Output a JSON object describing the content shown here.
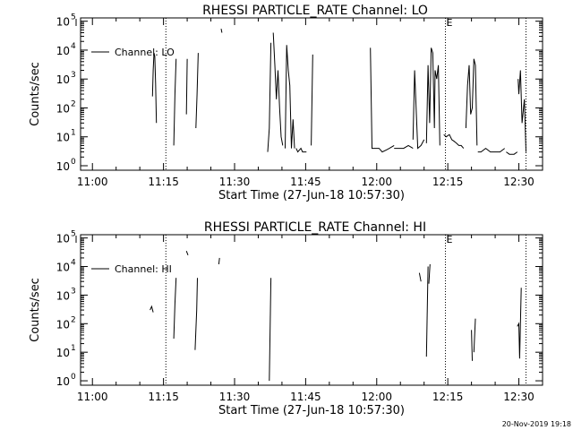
{
  "chart_data": [
    {
      "type": "line",
      "title": "RHESSI PARTICLE_RATE Channel: LO",
      "xlabel": "Start Time (27-Jun-18 10:57:30)",
      "ylabel": "Counts/sec",
      "log_y": true,
      "xlim": [
        "10:57:30",
        "12:35:00"
      ],
      "ylim": [
        0.7,
        130000
      ],
      "x_ticks": [
        "11:00",
        "11:15",
        "11:30",
        "11:45",
        "12:00",
        "12:15",
        "12:30"
      ],
      "y_ticks": [
        {
          "base": "10",
          "exp": "0"
        },
        {
          "base": "10",
          "exp": "1"
        },
        {
          "base": "10",
          "exp": "2"
        },
        {
          "base": "10",
          "exp": "3"
        },
        {
          "base": "10",
          "exp": "4"
        },
        {
          "base": "10",
          "exp": "5"
        }
      ],
      "markers": [
        {
          "time": "11:15:30",
          "label": ""
        },
        {
          "time": "12:14:30",
          "label": "E"
        },
        {
          "time": "12:31:30",
          "label": ""
        }
      ],
      "legend": {
        "position": "top-left",
        "entries": [
          "Channel: LO"
        ]
      },
      "series": [
        {
          "name": "Channel: LO",
          "segments": [
            [
              [
                "11:12:40",
                250
              ],
              [
                "11:12:50",
                2000
              ],
              [
                "11:13:00",
                8000
              ],
              [
                "11:13:10",
                6000
              ],
              [
                "11:13:20",
                700
              ],
              [
                "11:13:30",
                30
              ]
            ],
            [
              [
                "11:17:10",
                5
              ],
              [
                "11:17:25",
                300
              ],
              [
                "11:17:40",
                5000
              ]
            ],
            [
              [
                "11:19:50",
                60
              ],
              [
                "11:20:00",
                5000
              ]
            ],
            [
              [
                "11:21:50",
                20
              ],
              [
                "11:22:05",
                300
              ],
              [
                "11:22:20",
                8000
              ]
            ],
            [
              [
                "11:27:10",
                55000
              ],
              [
                "11:27:20",
                40000
              ]
            ],
            [
              [
                "11:37:00",
                3
              ],
              [
                "11:37:20",
                20
              ],
              [
                "11:37:40",
                18000
              ]
            ],
            [
              [
                "11:38:10",
                40000
              ],
              [
                "11:38:30",
                3000
              ],
              [
                "11:38:50",
                200
              ],
              [
                "11:39:10",
                2000
              ],
              [
                "11:39:30",
                100
              ],
              [
                "11:39:50",
                10
              ],
              [
                "11:40:10",
                5
              ]
            ],
            [
              [
                "11:40:40",
                4
              ],
              [
                "11:41:00",
                15000
              ],
              [
                "11:41:20",
                2000
              ],
              [
                "11:41:40",
                600
              ],
              [
                "11:42:00",
                4
              ],
              [
                "11:42:20",
                40
              ],
              [
                "11:42:40",
                4
              ]
            ],
            [
              [
                "11:43:00",
                4
              ],
              [
                "11:43:20",
                3
              ],
              [
                "11:44:00",
                4
              ],
              [
                "11:44:20",
                3
              ],
              [
                "11:44:50",
                3
              ],
              [
                "11:45:10",
                3
              ]
            ],
            [
              [
                "11:46:10",
                5
              ],
              [
                "11:46:30",
                7000
              ]
            ],
            [
              [
                "11:58:40",
                12000
              ],
              [
                "11:59:00",
                4
              ],
              [
                "11:59:40",
                4
              ],
              [
                "12:00:30",
                4
              ],
              [
                "12:01:10",
                3
              ],
              [
                "12:02:00",
                3.5
              ],
              [
                "12:02:40",
                4
              ],
              [
                "12:03:40",
                5
              ]
            ],
            [
              [
                "12:03:40",
                4
              ],
              [
                "12:04:40",
                4
              ],
              [
                "12:05:40",
                4
              ],
              [
                "12:06:40",
                5
              ],
              [
                "12:07:40",
                4
              ]
            ],
            [
              [
                "12:07:40",
                8
              ],
              [
                "12:08:00",
                2000
              ],
              [
                "12:08:40",
                4
              ],
              [
                "12:09:20",
                5
              ],
              [
                "12:10:00",
                8
              ]
            ],
            [
              [
                "12:10:30",
                6
              ],
              [
                "12:10:50",
                3000
              ],
              [
                "12:11:10",
                30
              ],
              [
                "12:11:30",
                12000
              ],
              [
                "12:11:50",
                8000
              ],
              [
                "12:12:10",
                20
              ],
              [
                "12:12:20",
                2000
              ],
              [
                "12:12:40",
                1000
              ],
              [
                "12:13:00",
                3000
              ],
              [
                "12:13:20",
                5
              ]
            ],
            [
              [
                "12:14:10",
                12
              ],
              [
                "12:14:40",
                10
              ],
              [
                "12:15:20",
                12
              ],
              [
                "12:15:50",
                8
              ],
              [
                "12:16:20",
                7
              ],
              [
                "12:16:50",
                6
              ],
              [
                "12:17:20",
                5
              ],
              [
                "12:17:50",
                5
              ],
              [
                "12:18:20",
                4
              ]
            ],
            [
              [
                "12:18:50",
                20
              ],
              [
                "12:19:10",
                600
              ],
              [
                "12:19:30",
                3000
              ],
              [
                "12:19:50",
                60
              ],
              [
                "12:20:10",
                100
              ],
              [
                "12:20:30",
                5000
              ],
              [
                "12:20:50",
                3000
              ],
              [
                "12:21:10",
                5
              ]
            ],
            [
              [
                "12:21:20",
                3
              ],
              [
                "12:22:00",
                3
              ],
              [
                "12:23:00",
                4
              ],
              [
                "12:24:00",
                3
              ],
              [
                "12:25:00",
                3
              ],
              [
                "12:26:00",
                3
              ],
              [
                "12:27:00",
                4
              ]
            ],
            [
              [
                "12:27:20",
                3
              ],
              [
                "12:28:00",
                2.5
              ],
              [
                "12:29:00",
                2.5
              ],
              [
                "12:29:40",
                3
              ]
            ],
            [
              [
                "12:29:50",
                1000
              ],
              [
                "12:30:00",
                300
              ],
              [
                "12:30:20",
                2000
              ],
              [
                "12:30:40",
                30
              ],
              [
                "12:31:10",
                200
              ],
              [
                "12:31:30",
                3
              ]
            ]
          ]
        }
      ]
    },
    {
      "type": "line",
      "title": "RHESSI PARTICLE_RATE Channel: HI",
      "xlabel": "Start Time (27-Jun-18 10:57:30)",
      "ylabel": "Counts/sec",
      "log_y": true,
      "xlim": [
        "10:57:30",
        "12:35:00"
      ],
      "ylim": [
        0.7,
        130000
      ],
      "x_ticks": [
        "11:00",
        "11:15",
        "11:30",
        "11:45",
        "12:00",
        "12:15",
        "12:30"
      ],
      "y_ticks": [
        {
          "base": "10",
          "exp": "0"
        },
        {
          "base": "10",
          "exp": "1"
        },
        {
          "base": "10",
          "exp": "2"
        },
        {
          "base": "10",
          "exp": "3"
        },
        {
          "base": "10",
          "exp": "4"
        },
        {
          "base": "10",
          "exp": "5"
        }
      ],
      "markers": [
        {
          "time": "11:15:30",
          "label": ""
        },
        {
          "time": "12:14:30",
          "label": "E"
        },
        {
          "time": "12:31:30",
          "label": ""
        }
      ],
      "legend": {
        "position": "top-left",
        "entries": [
          "Channel: HI"
        ]
      },
      "series": [
        {
          "name": "Channel: HI",
          "segments": [
            [
              [
                "11:12:10",
                300
              ],
              [
                "11:12:30",
                400
              ],
              [
                "11:12:50",
                250
              ]
            ],
            [
              [
                "11:17:10",
                30
              ],
              [
                "11:17:25",
                500
              ],
              [
                "11:17:40",
                4000
              ]
            ],
            [
              [
                "11:19:50",
                35000
              ],
              [
                "11:20:10",
                25000
              ]
            ],
            [
              [
                "11:21:40",
                12
              ],
              [
                "11:22:00",
                300
              ],
              [
                "11:22:10",
                4000
              ]
            ],
            [
              [
                "11:26:40",
                12000
              ],
              [
                "11:26:50",
                20000
              ]
            ],
            [
              [
                "11:37:20",
                1
              ],
              [
                "11:37:40",
                4000
              ]
            ],
            [
              [
                "12:09:00",
                6000
              ],
              [
                "12:09:20",
                3000
              ]
            ],
            [
              [
                "12:10:30",
                7
              ],
              [
                "12:10:50",
                10000
              ]
            ],
            [
              [
                "12:11:00",
                2500
              ],
              [
                "12:11:15",
                12000
              ]
            ],
            [
              [
                "12:20:00",
                60
              ],
              [
                "12:20:10",
                5
              ]
            ],
            [
              [
                "12:20:30",
                10
              ],
              [
                "12:20:50",
                150
              ]
            ],
            [
              [
                "12:29:40",
                80
              ],
              [
                "12:30:00",
                100
              ],
              [
                "12:30:10",
                6
              ],
              [
                "12:30:30",
                1800
              ]
            ]
          ]
        }
      ]
    }
  ],
  "timestamp": "20-Nov-2019 19:18"
}
